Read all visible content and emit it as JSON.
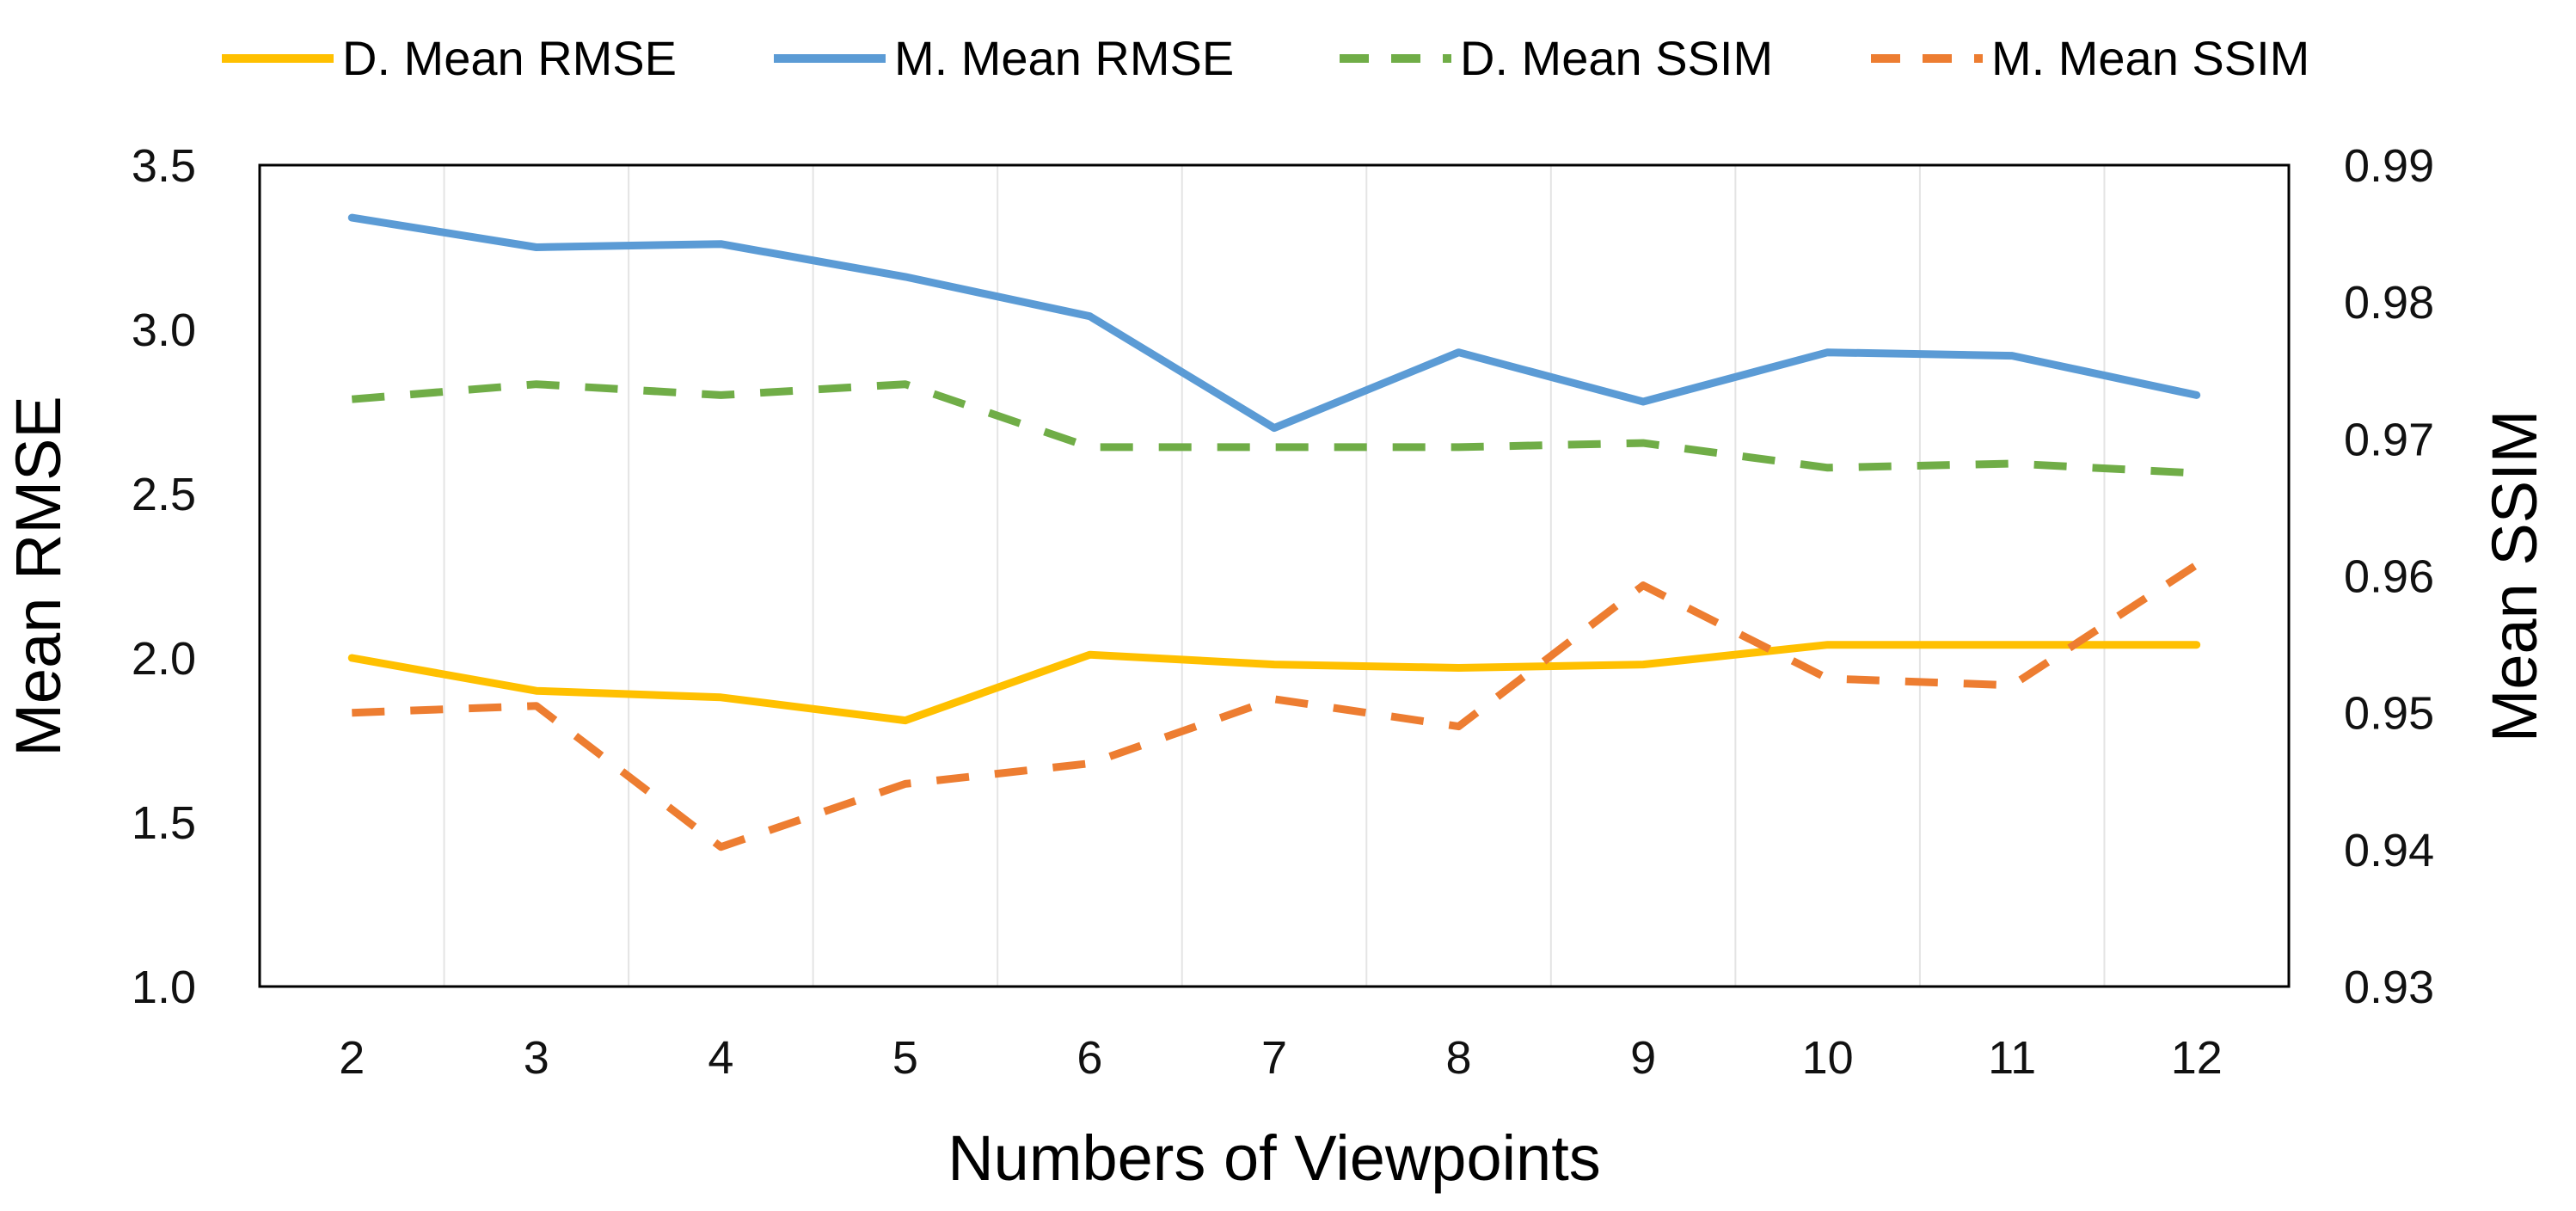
{
  "chart_data": {
    "type": "line",
    "title": "",
    "xlabel": "Numbers of Viewpoints",
    "ylabel": "Mean RMSE",
    "y2label": "Mean SSIM",
    "categories": [
      "2",
      "3",
      "4",
      "5",
      "6",
      "7",
      "8",
      "9",
      "10",
      "11",
      "12"
    ],
    "ylim": [
      1.0,
      3.5
    ],
    "y2lim": [
      0.93,
      0.99
    ],
    "yticks": [
      "1.0",
      "1.5",
      "2.0",
      "2.5",
      "3.0",
      "3.5"
    ],
    "y2ticks": [
      "0.93",
      "0.94",
      "0.95",
      "0.96",
      "0.97",
      "0.98",
      "0.99"
    ],
    "grid": "vertical",
    "legend_position": "top",
    "series": [
      {
        "name": "D. Mean RMSE",
        "axis": "left",
        "style": "solid",
        "color": "#FFC000",
        "values": [
          2.0,
          1.9,
          1.88,
          1.81,
          2.01,
          1.98,
          1.97,
          1.98,
          2.04,
          2.04,
          2.04
        ]
      },
      {
        "name": "M. Mean RMSE",
        "axis": "left",
        "style": "solid",
        "color": "#5B9BD5",
        "values": [
          3.34,
          3.25,
          3.26,
          3.16,
          3.04,
          2.7,
          2.93,
          2.78,
          2.93,
          2.92,
          2.8
        ]
      },
      {
        "name": "D. Mean SSIM",
        "axis": "right",
        "style": "dashed",
        "color": "#70AD47",
        "values": [
          0.9729,
          0.974,
          0.9732,
          0.974,
          0.9694,
          0.9694,
          0.9694,
          0.9697,
          0.9679,
          0.9682,
          0.9675
        ]
      },
      {
        "name": "M. Mean SSIM",
        "axis": "right",
        "style": "dashed",
        "color": "#ED7D31",
        "values": [
          0.95,
          0.9505,
          0.9402,
          0.9448,
          0.9463,
          0.951,
          0.949,
          0.9593,
          0.9525,
          0.952,
          0.9608
        ]
      }
    ]
  }
}
